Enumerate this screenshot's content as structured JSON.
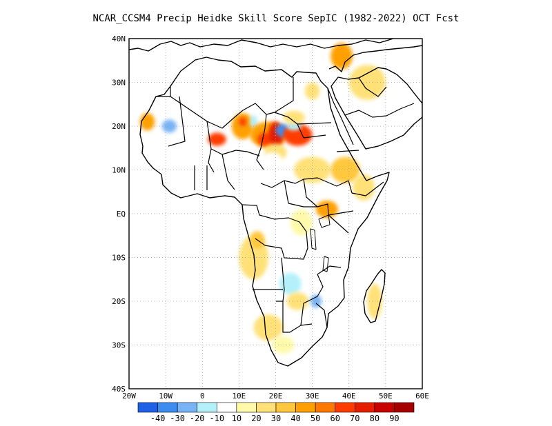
{
  "title": "NCAR_CCSM4 Precip Heidke Skill Score SepIC (1982-2022) OCT Fcst",
  "lat_labels": [
    {
      "text": "40N",
      "lat": 40
    },
    {
      "text": "30N",
      "lat": 30
    },
    {
      "text": "20N",
      "lat": 20
    },
    {
      "text": "10N",
      "lat": 10
    },
    {
      "text": "EQ",
      "lat": 0
    },
    {
      "text": "10S",
      "lat": -10
    },
    {
      "text": "20S",
      "lat": -20
    },
    {
      "text": "30S",
      "lat": -30
    },
    {
      "text": "40S",
      "lat": -40
    }
  ],
  "lon_labels": [
    {
      "text": "20W",
      "lon": -20
    },
    {
      "text": "10W",
      "lon": -10
    },
    {
      "text": "0",
      "lon": 0
    },
    {
      "text": "10E",
      "lon": 10
    },
    {
      "text": "20E",
      "lon": 20
    },
    {
      "text": "30E",
      "lon": 30
    },
    {
      "text": "40E",
      "lon": 40
    },
    {
      "text": "50E",
      "lon": 50
    },
    {
      "text": "60E",
      "lon": 60
    }
  ],
  "extent": {
    "lon_min": -20,
    "lon_max": 60,
    "lat_min": -40,
    "lat_max": 40
  },
  "colorbar": {
    "colors": [
      "#1e60e6",
      "#3c8cf0",
      "#78b4f5",
      "#b4f0fa",
      "#ffffff",
      "#fffaaa",
      "#ffe178",
      "#ffc83c",
      "#ffa000",
      "#ff7800",
      "#ff3c00",
      "#e61e00",
      "#c80000",
      "#a50000"
    ],
    "labels": [
      "-40",
      "-30",
      "-20",
      "-10",
      "10",
      "20",
      "30",
      "40",
      "50",
      "60",
      "70",
      "80",
      "90"
    ]
  },
  "skill_patches": [
    {
      "lon": -15,
      "lat": 21,
      "rx": 2,
      "ry": 2,
      "value": 40
    },
    {
      "lon": -9,
      "lat": 20,
      "rx": 2,
      "ry": 1.5,
      "value": -30
    },
    {
      "lon": -3,
      "lat": 20,
      "rx": 3,
      "ry": 3,
      "value": -10
    },
    {
      "lon": 4,
      "lat": 17,
      "rx": 2.5,
      "ry": 1.5,
      "value": 60
    },
    {
      "lon": 11,
      "lat": 20,
      "rx": 3,
      "ry": 3,
      "value": 40
    },
    {
      "lon": 11,
      "lat": 21,
      "rx": 1,
      "ry": 1,
      "value": 60
    },
    {
      "lon": 14,
      "lat": 21,
      "rx": 1,
      "ry": 1.5,
      "value": -20
    },
    {
      "lon": 18,
      "lat": 18,
      "rx": 5,
      "ry": 3,
      "value": 40
    },
    {
      "lon": 17,
      "lat": 17,
      "rx": 2,
      "ry": 1.5,
      "value": 60
    },
    {
      "lon": 20,
      "lat": 18,
      "rx": 2,
      "ry": 3,
      "value": 70
    },
    {
      "lon": 22,
      "lat": 19,
      "rx": 2,
      "ry": 1.5,
      "value": -40
    },
    {
      "lon": 26,
      "lat": 18,
      "rx": 4,
      "ry": 2.5,
      "value": 60
    },
    {
      "lon": 25,
      "lat": 20,
      "rx": 2,
      "ry": 1,
      "value": -20
    },
    {
      "lon": 12,
      "lat": 14,
      "rx": 3,
      "ry": 2,
      "value": -10
    },
    {
      "lon": 20,
      "lat": 14,
      "rx": 3,
      "ry": 2,
      "value": 20
    },
    {
      "lon": 25,
      "lat": 22,
      "rx": 3,
      "ry": 1.5,
      "value": 20
    },
    {
      "lon": 19,
      "lat": 12,
      "rx": 3,
      "ry": 2,
      "value": -10
    },
    {
      "lon": 30,
      "lat": 10,
      "rx": 5,
      "ry": 3,
      "value": 20
    },
    {
      "lon": 39,
      "lat": 10,
      "rx": 4,
      "ry": 3,
      "value": 30
    },
    {
      "lon": 44,
      "lat": 6,
      "rx": 3,
      "ry": 3,
      "value": 20
    },
    {
      "lon": 34,
      "lat": 1,
      "rx": 3,
      "ry": 2,
      "value": 40
    },
    {
      "lon": 38,
      "lat": 36,
      "rx": 3,
      "ry": 3,
      "value": 40
    },
    {
      "lon": 45,
      "lat": 30,
      "rx": 5,
      "ry": 4,
      "value": 20
    },
    {
      "lon": 30,
      "lat": 28,
      "rx": 2,
      "ry": 2,
      "value": 20
    },
    {
      "lon": 28,
      "lat": 33,
      "rx": 2,
      "ry": 2,
      "value": -10
    },
    {
      "lon": 2,
      "lat": 30,
      "rx": 3,
      "ry": 1.5,
      "value": -10
    },
    {
      "lon": 14,
      "lat": -10,
      "rx": 4,
      "ry": 5,
      "value": 20
    },
    {
      "lon": 15,
      "lat": -6,
      "rx": 2,
      "ry": 2,
      "value": 30
    },
    {
      "lon": 24,
      "lat": -16,
      "rx": 3,
      "ry": 2.5,
      "value": -20
    },
    {
      "lon": 26,
      "lat": -20,
      "rx": 3,
      "ry": 2,
      "value": 20
    },
    {
      "lon": 31,
      "lat": -20,
      "rx": 1.5,
      "ry": 1.5,
      "value": -30
    },
    {
      "lon": 18,
      "lat": -26,
      "rx": 4,
      "ry": 3,
      "value": 20
    },
    {
      "lon": 22,
      "lat": -30,
      "rx": 3,
      "ry": 2,
      "value": 10
    },
    {
      "lon": 47,
      "lat": -20,
      "rx": 2,
      "ry": 4,
      "value": 20
    },
    {
      "lon": 27,
      "lat": -2,
      "rx": 3,
      "ry": 3,
      "value": 10
    }
  ]
}
